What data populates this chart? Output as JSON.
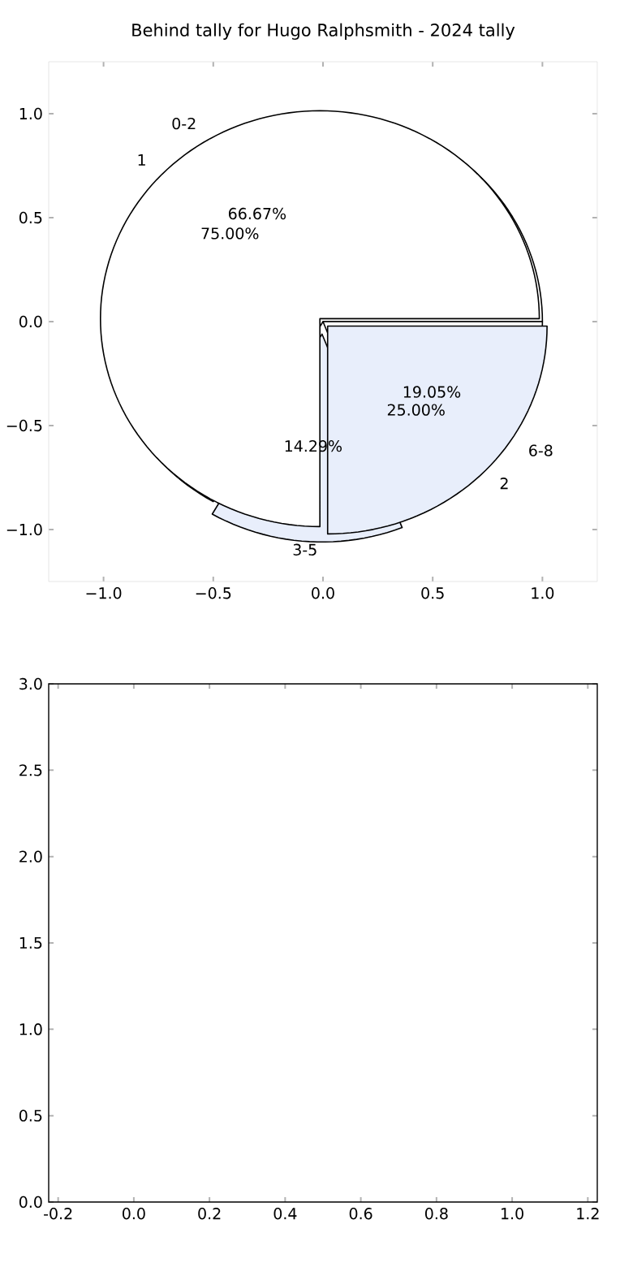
{
  "chart_data": [
    {
      "type": "scatter",
      "title": "Behind tally for Hugo Ralphsmith - 2024 tally",
      "xlim": [
        -1.25,
        1.25
      ],
      "ylim": [
        -1.25,
        1.25
      ],
      "xticks": [
        {
          "value": -1,
          "label": "−1.0"
        },
        {
          "value": -0.5,
          "label": "−0.5"
        },
        {
          "value": 0,
          "label": "0.0"
        },
        {
          "value": 0.5,
          "label": "0.5"
        },
        {
          "value": 1,
          "label": "1.0"
        }
      ],
      "yticks": [
        {
          "value": -1,
          "label": "−1.0"
        },
        {
          "value": -0.5,
          "label": "−0.5"
        },
        {
          "value": 0,
          "label": "0.0"
        },
        {
          "value": 0.5,
          "label": "0.5"
        },
        {
          "value": 1,
          "label": "1.0"
        }
      ]
    },
    {
      "type": "pie",
      "categories": [
        "0-2",
        "3-5",
        "6-8"
      ],
      "values": [
        66.67,
        14.29,
        19.05
      ],
      "value_labels": [
        "66.67%",
        "14.29%",
        "19.05%"
      ],
      "colors": [
        "#ffffff",
        "#e8eefb",
        "#ffffff"
      ]
    },
    {
      "type": "pie",
      "categories": [
        "1",
        "2"
      ],
      "values": [
        75,
        25
      ],
      "value_labels": [
        "75.00%",
        "25.00%"
      ],
      "colors": [
        "#ffffff",
        "#e8eefb"
      ]
    },
    {
      "type": "scatter",
      "xlim": [
        -0.225,
        1.225
      ],
      "ylim": [
        0,
        3
      ],
      "xticks": [
        -0.2,
        {
          "value": 0,
          "label": "0.0"
        },
        0.2,
        0.4,
        0.6,
        0.8,
        {
          "value": 1,
          "label": "1.0"
        },
        1.2
      ],
      "yticks": [
        {
          "value": 0,
          "label": "0.0"
        },
        0.5,
        {
          "value": 1,
          "label": "1.0"
        },
        1.5,
        {
          "value": 2,
          "label": "2.0"
        },
        2.5,
        {
          "value": 3,
          "label": "3.0"
        }
      ]
    }
  ]
}
